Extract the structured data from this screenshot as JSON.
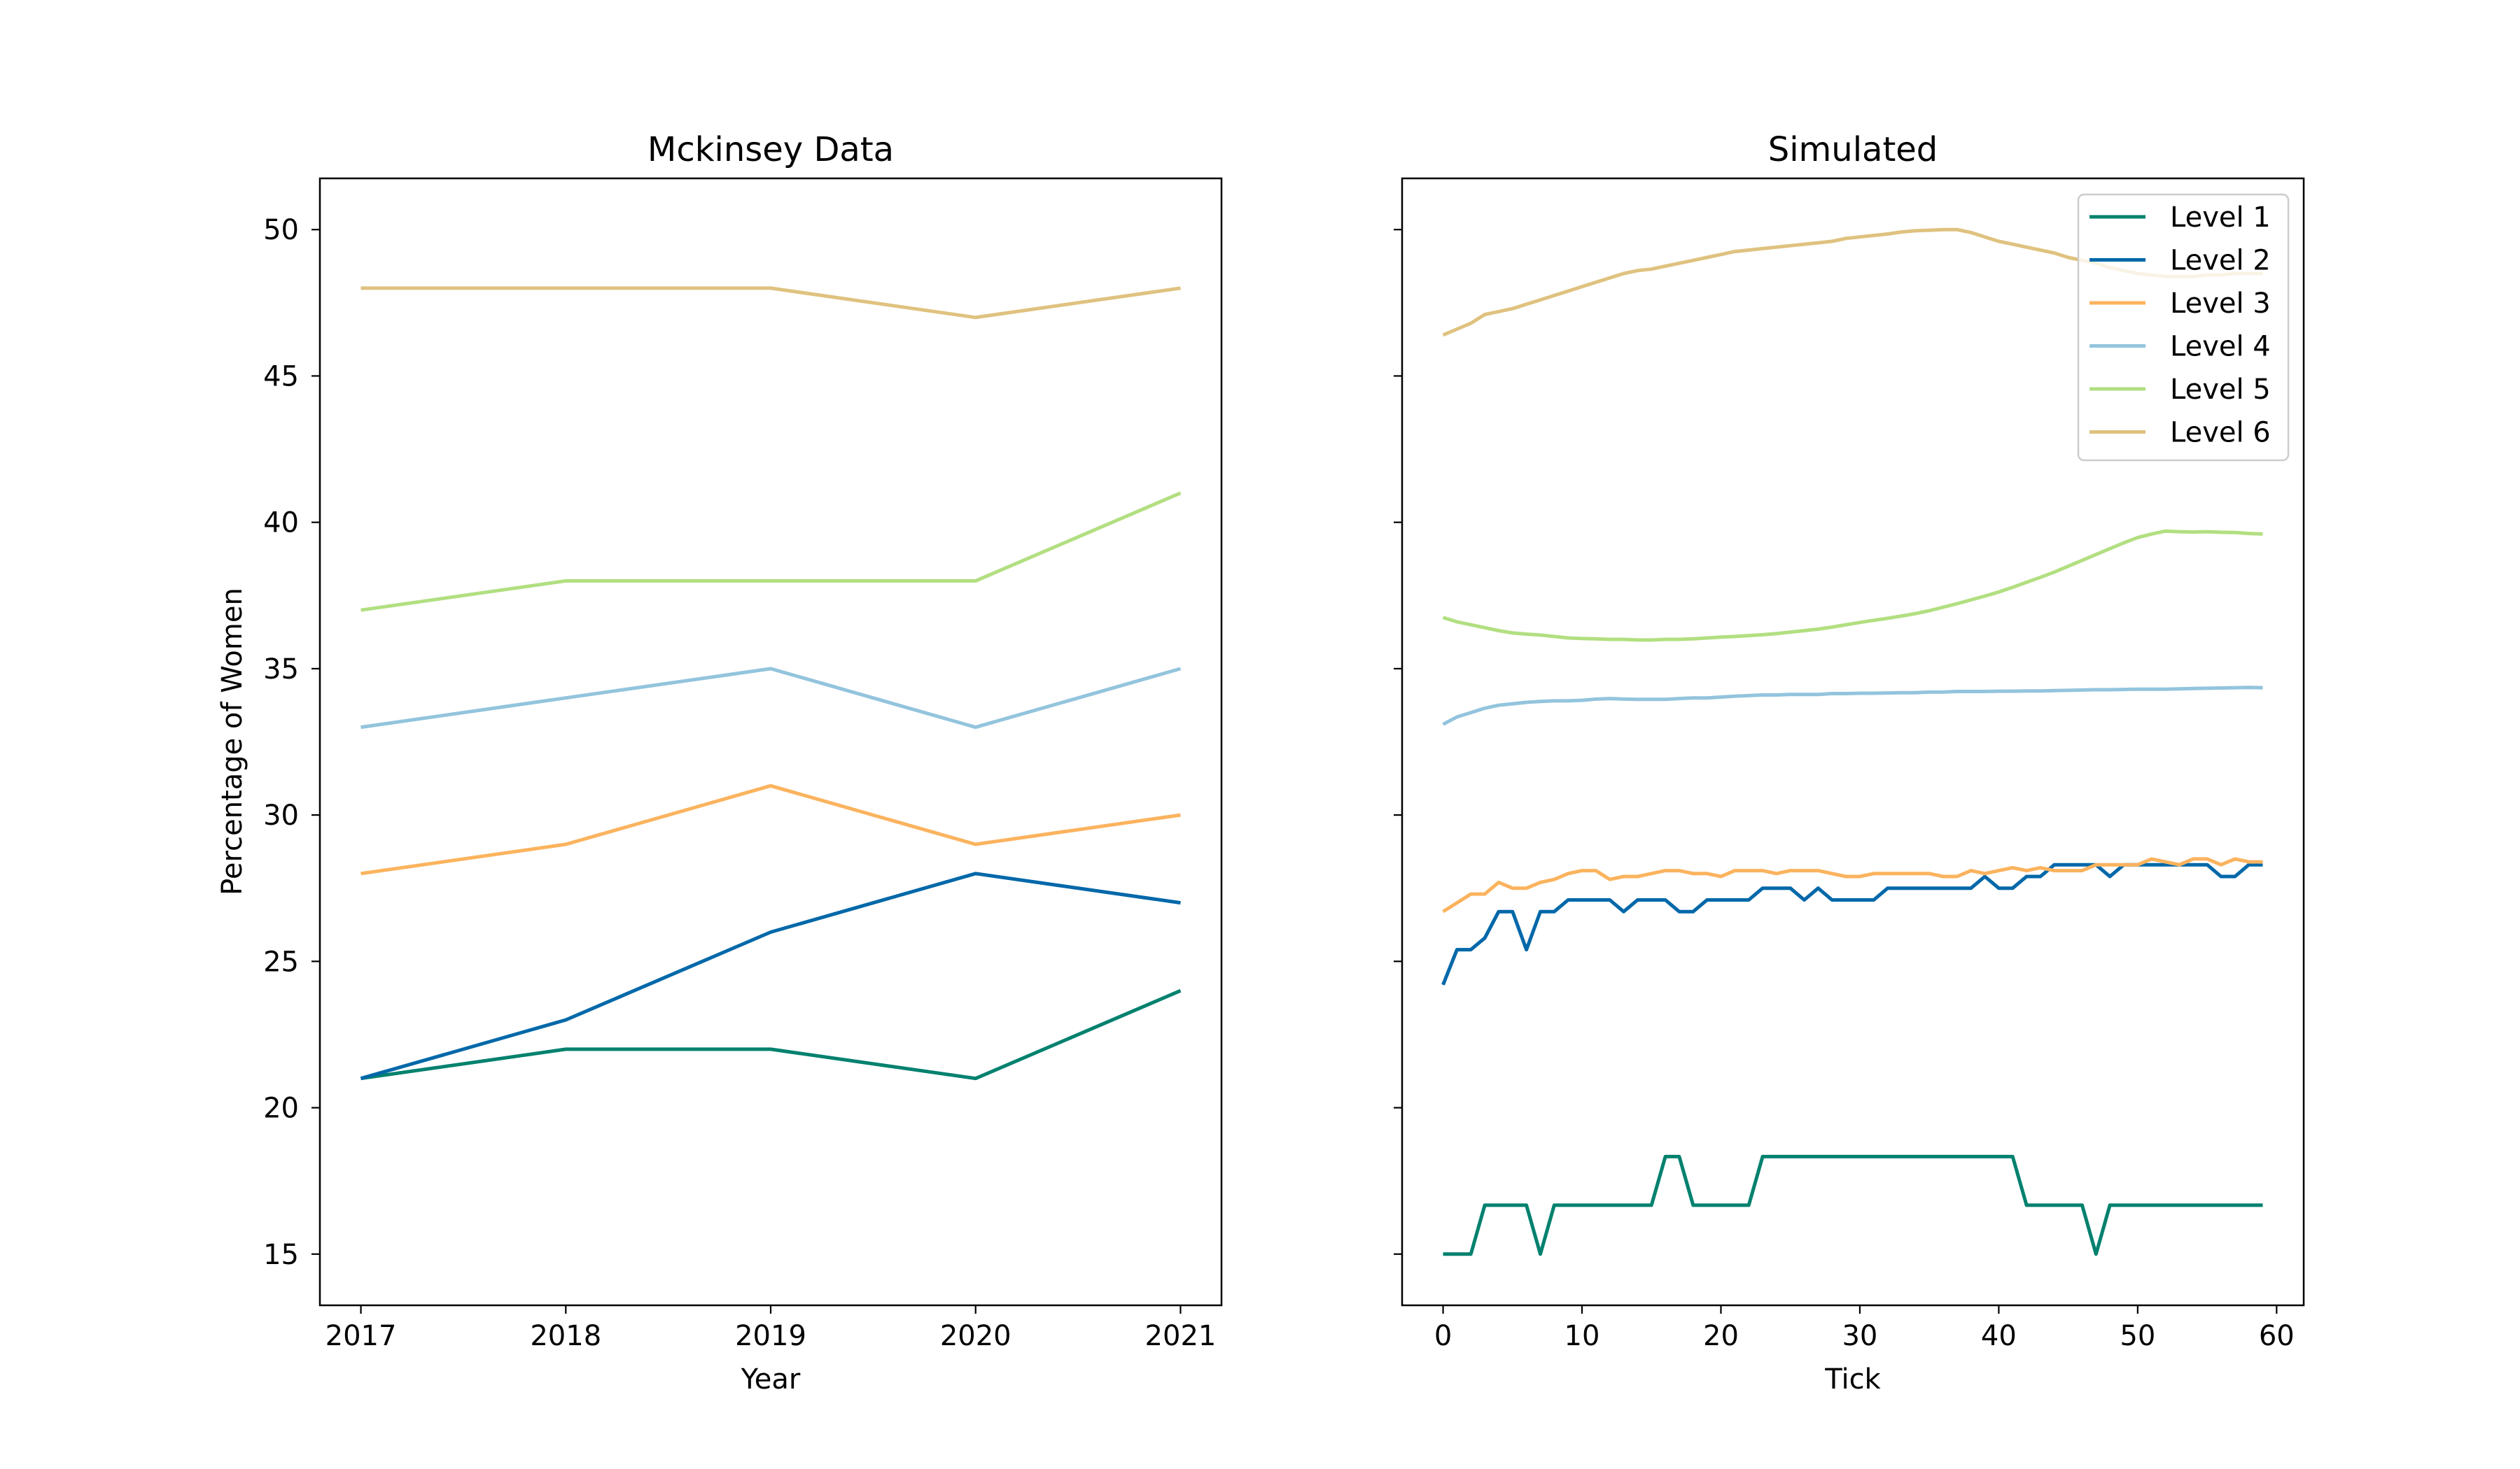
{
  "chart_data": [
    {
      "type": "line",
      "title": "Mckinsey Data",
      "xlabel": "Year",
      "ylabel": "Percentage of Women",
      "x": [
        2017,
        2018,
        2019,
        2020,
        2021
      ],
      "xticks": [
        "2017",
        "2018",
        "2019",
        "2020",
        "2021"
      ],
      "xlim": [
        2016.8,
        2021.2
      ],
      "ylim": [
        13.25,
        51.75
      ],
      "yticks": [
        "15",
        "20",
        "25",
        "30",
        "35",
        "40",
        "45",
        "50"
      ],
      "grid": false,
      "series": [
        {
          "color": "#00816e",
          "values": [
            21,
            22,
            22,
            21,
            24
          ]
        },
        {
          "color": "#0068a9",
          "values": [
            21,
            23,
            26,
            28,
            27
          ]
        },
        {
          "color": "#fbb35e",
          "values": [
            28,
            29,
            31,
            29,
            30
          ]
        },
        {
          "color": "#93c4dd",
          "values": [
            33,
            34,
            35,
            33,
            35
          ]
        },
        {
          "color": "#b2df81",
          "values": [
            37,
            38,
            38,
            38,
            41
          ]
        },
        {
          "color": "#dfc27f",
          "values": [
            48,
            48,
            48,
            47,
            48
          ]
        }
      ]
    },
    {
      "type": "line",
      "title": "Simulated",
      "xlabel": "Tick",
      "ylabel": "",
      "xticks": [
        "0",
        "10",
        "20",
        "30",
        "40",
        "50",
        "60"
      ],
      "xlim": [
        -2.95,
        61.95
      ],
      "ylim": [
        13.25,
        51.75
      ],
      "grid": false,
      "legend": "top-right",
      "series": [
        {
          "name": "Level 1",
          "color": "#00816e",
          "values": [
            15,
            15,
            15,
            16.67,
            16.67,
            16.67,
            16.67,
            15,
            16.67,
            16.67,
            16.67,
            16.67,
            16.67,
            16.67,
            16.67,
            16.67,
            18.33,
            18.33,
            16.67,
            16.67,
            16.67,
            16.67,
            16.67,
            18.33,
            18.33,
            18.33,
            18.33,
            18.33,
            18.33,
            18.33,
            18.33,
            18.33,
            18.33,
            18.33,
            18.33,
            18.33,
            18.33,
            18.33,
            18.33,
            18.33,
            18.33,
            18.33,
            16.67,
            16.67,
            16.67,
            16.67,
            16.67,
            15,
            16.67,
            16.67,
            16.67,
            16.67,
            16.67,
            16.67,
            16.67,
            16.67,
            16.67,
            16.67,
            16.67,
            16.67
          ]
        },
        {
          "name": "Level 2",
          "color": "#0068a9",
          "values": [
            24.2,
            25.4,
            25.4,
            25.8,
            26.7,
            26.7,
            25.4,
            26.7,
            26.7,
            27.1,
            27.1,
            27.1,
            27.1,
            26.7,
            27.1,
            27.1,
            27.1,
            26.7,
            26.7,
            27.1,
            27.1,
            27.1,
            27.1,
            27.5,
            27.5,
            27.5,
            27.1,
            27.5,
            27.1,
            27.1,
            27.1,
            27.1,
            27.5,
            27.5,
            27.5,
            27.5,
            27.5,
            27.5,
            27.5,
            27.9,
            27.5,
            27.5,
            27.9,
            27.9,
            28.3,
            28.3,
            28.3,
            28.3,
            27.9,
            28.3,
            28.3,
            28.3,
            28.3,
            28.3,
            28.3,
            28.3,
            27.9,
            27.9,
            28.3,
            28.3
          ]
        },
        {
          "name": "Level 3",
          "color": "#fbb35e",
          "values": [
            26.7,
            27,
            27.3,
            27.3,
            27.7,
            27.5,
            27.5,
            27.7,
            27.8,
            28,
            28.1,
            28.1,
            27.8,
            27.9,
            27.9,
            28,
            28.1,
            28.1,
            28,
            28,
            27.9,
            28.1,
            28.1,
            28.1,
            28,
            28.1,
            28.1,
            28.1,
            28,
            27.9,
            27.9,
            28,
            28,
            28,
            28,
            28,
            27.9,
            27.9,
            28.1,
            28,
            28.1,
            28.2,
            28.1,
            28.2,
            28.1,
            28.1,
            28.1,
            28.3,
            28.3,
            28.3,
            28.3,
            28.5,
            28.4,
            28.3,
            28.5,
            28.5,
            28.3,
            28.5,
            28.4,
            28.4
          ]
        },
        {
          "name": "Level 4",
          "color": "#93c4dd",
          "values": [
            33.1,
            33.35,
            33.5,
            33.65,
            33.75,
            33.8,
            33.85,
            33.88,
            33.9,
            33.9,
            33.92,
            33.96,
            33.98,
            33.96,
            33.95,
            33.95,
            33.95,
            33.98,
            34,
            34,
            34.03,
            34.06,
            34.08,
            34.1,
            34.1,
            34.12,
            34.12,
            34.12,
            34.15,
            34.15,
            34.16,
            34.16,
            34.17,
            34.18,
            34.18,
            34.2,
            34.2,
            34.22,
            34.22,
            34.22,
            34.23,
            34.23,
            34.24,
            34.24,
            34.25,
            34.26,
            34.27,
            34.28,
            34.28,
            34.29,
            34.3,
            34.3,
            34.3,
            34.31,
            34.32,
            34.33,
            34.34,
            34.35,
            34.36,
            34.35
          ]
        },
        {
          "name": "Level 5",
          "color": "#b2df81",
          "values": [
            36.75,
            36.6,
            36.5,
            36.4,
            36.3,
            36.22,
            36.18,
            36.15,
            36.1,
            36.05,
            36.03,
            36.02,
            36,
            36,
            35.98,
            35.98,
            36,
            36,
            36.02,
            36.05,
            36.08,
            36.1,
            36.13,
            36.16,
            36.2,
            36.25,
            36.3,
            36.35,
            36.42,
            36.5,
            36.58,
            36.65,
            36.72,
            36.8,
            36.88,
            36.98,
            37.1,
            37.22,
            37.35,
            37.48,
            37.62,
            37.78,
            37.95,
            38.12,
            38.3,
            38.5,
            38.7,
            38.9,
            39.1,
            39.3,
            39.48,
            39.6,
            39.7,
            39.68,
            39.67,
            39.68,
            39.66,
            39.65,
            39.62,
            39.6
          ]
        },
        {
          "name": "Level 6",
          "color": "#dfc27f",
          "values": [
            46.4,
            46.6,
            46.8,
            47.1,
            47.2,
            47.3,
            47.45,
            47.6,
            47.75,
            47.9,
            48.05,
            48.2,
            48.35,
            48.5,
            48.6,
            48.65,
            48.75,
            48.85,
            48.95,
            49.05,
            49.15,
            49.25,
            49.3,
            49.35,
            49.4,
            49.45,
            49.5,
            49.55,
            49.6,
            49.7,
            49.75,
            49.8,
            49.85,
            49.92,
            49.96,
            49.98,
            50,
            50,
            49.9,
            49.75,
            49.6,
            49.5,
            49.4,
            49.3,
            49.2,
            49.05,
            48.95,
            48.85,
            48.7,
            48.6,
            48.5,
            48.45,
            48.4,
            48.4,
            48.4,
            48.45,
            48.45,
            48.5,
            48.5,
            48.5
          ]
        }
      ]
    }
  ]
}
